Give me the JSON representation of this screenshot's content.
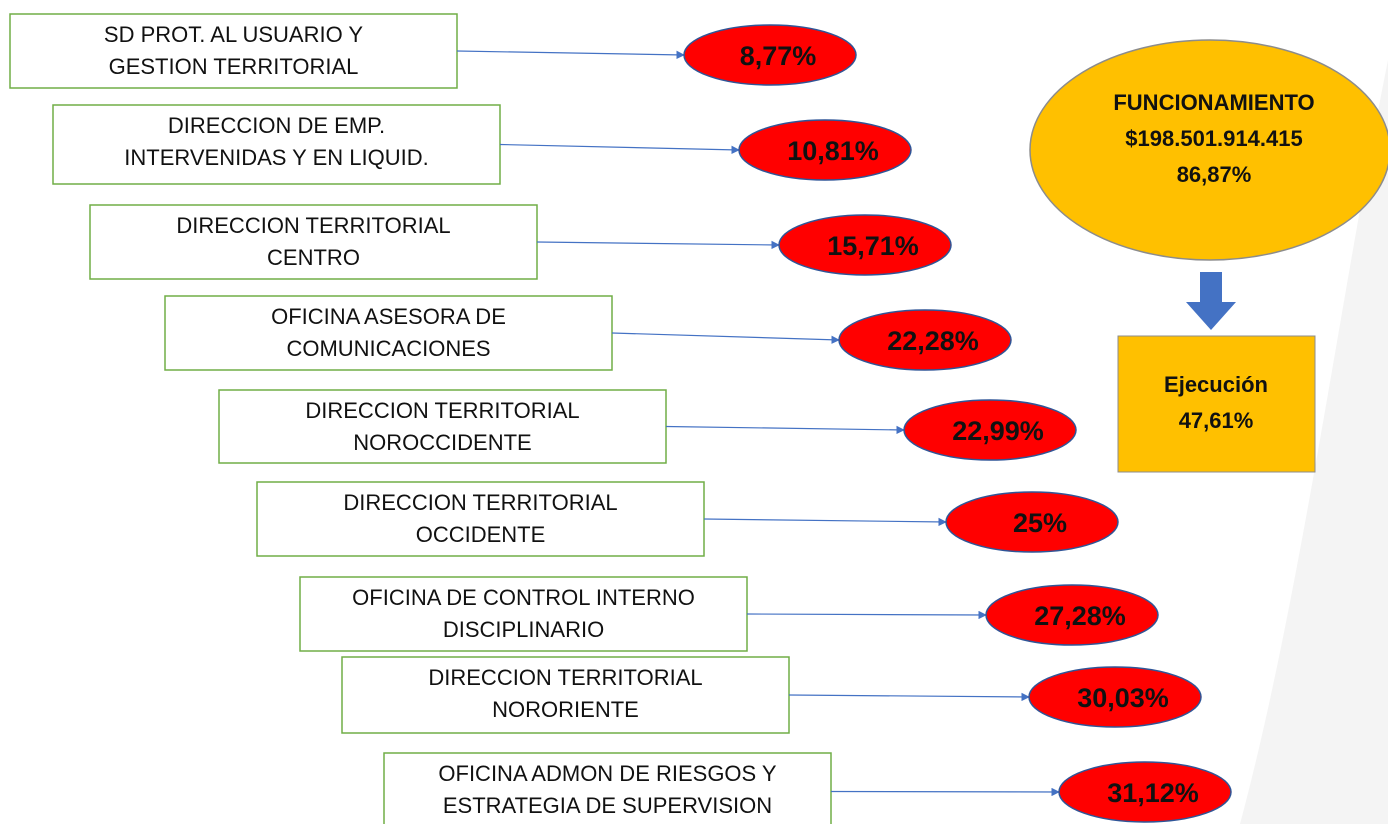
{
  "items": [
    {
      "label_lines": [
        "SD PROT. AL USUARIO Y",
        "GESTION TERRITORIAL"
      ],
      "value": "8,77%"
    },
    {
      "label_lines": [
        "DIRECCION DE EMP.",
        "INTERVENIDAS Y EN LIQUID."
      ],
      "value": "10,81%"
    },
    {
      "label_lines": [
        "DIRECCION TERRITORIAL",
        "CENTRO"
      ],
      "value": "15,71%"
    },
    {
      "label_lines": [
        "OFICINA ASESORA DE",
        "COMUNICACIONES"
      ],
      "value": "22,28%"
    },
    {
      "label_lines": [
        "DIRECCION TERRITORIAL",
        "NOROCCIDENTE"
      ],
      "value": "22,99%"
    },
    {
      "label_lines": [
        "DIRECCION TERRITORIAL",
        "OCCIDENTE"
      ],
      "value": "25%"
    },
    {
      "label_lines": [
        "OFICINA DE CONTROL INTERNO",
        "DISCIPLINARIO"
      ],
      "value": "27,28%"
    },
    {
      "label_lines": [
        "DIRECCION TERRITORIAL",
        "NORORIENTE"
      ],
      "value": "30,03%"
    },
    {
      "label_lines": [
        "OFICINA ADMON DE RIESGOS  Y",
        "ESTRATEGIA DE SUPERVISION"
      ],
      "value": "31,12%"
    }
  ],
  "summary": {
    "title": "FUNCIONAMIENTO",
    "amount": "$198.501.914.415",
    "percent": "86,87%"
  },
  "execution": {
    "label": "Ejecución",
    "percent": "47,61%"
  }
}
